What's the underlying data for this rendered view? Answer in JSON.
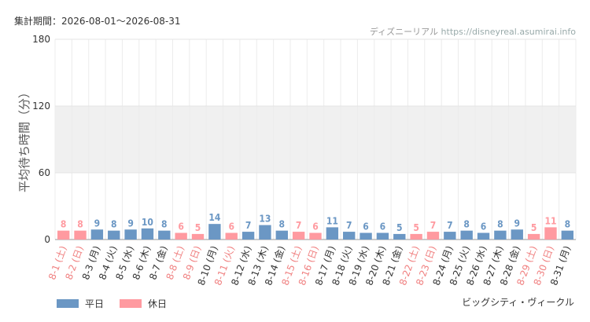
{
  "header": {
    "period": "集計期間：2026-08-01～2026-08-31",
    "credit_name": "ディズニーリアル",
    "credit_url": "https://disneyreal.asumirai.info"
  },
  "footer": {
    "attraction": "ビッグシティ・ヴィークル"
  },
  "colors": {
    "weekday": "#6b97c4",
    "holiday": "#ff9aa0",
    "band": "#f0f0f0",
    "grid": "#e4e4e4"
  },
  "chart_data": {
    "type": "bar",
    "ylabel": "平均待ち時間（分）",
    "ylim": [
      0,
      180
    ],
    "yticks": [
      0,
      60,
      120,
      180
    ],
    "grid": true,
    "legend_position": "bottom-left",
    "legend": [
      {
        "name": "平日",
        "kind": "weekday"
      },
      {
        "name": "休日",
        "kind": "holiday"
      }
    ],
    "categories": [
      "8-1 (土)",
      "8-2 (日)",
      "8-3 (月)",
      "8-4 (火)",
      "8-5 (水)",
      "8-6 (木)",
      "8-7 (金)",
      "8-8 (土)",
      "8-9 (日)",
      "8-10 (月)",
      "8-11 (火)",
      "8-12 (水)",
      "8-13 (木)",
      "8-14 (金)",
      "8-15 (土)",
      "8-16 (日)",
      "8-17 (月)",
      "8-18 (火)",
      "8-19 (水)",
      "8-20 (木)",
      "8-21 (金)",
      "8-22 (土)",
      "8-23 (日)",
      "8-24 (月)",
      "8-25 (火)",
      "8-26 (水)",
      "8-27 (木)",
      "8-28 (金)",
      "8-29 (土)",
      "8-30 (日)",
      "8-31 (月)"
    ],
    "values": [
      8,
      8,
      9,
      8,
      9,
      10,
      8,
      6,
      5,
      14,
      6,
      7,
      13,
      8,
      7,
      6,
      11,
      7,
      6,
      6,
      5,
      5,
      7,
      7,
      8,
      6,
      8,
      9,
      5,
      11,
      8
    ],
    "day_type": [
      "holiday",
      "holiday",
      "weekday",
      "weekday",
      "weekday",
      "weekday",
      "weekday",
      "holiday",
      "holiday",
      "weekday",
      "holiday",
      "weekday",
      "weekday",
      "weekday",
      "holiday",
      "holiday",
      "weekday",
      "weekday",
      "weekday",
      "weekday",
      "weekday",
      "holiday",
      "holiday",
      "weekday",
      "weekday",
      "weekday",
      "weekday",
      "weekday",
      "holiday",
      "holiday",
      "weekday"
    ]
  }
}
